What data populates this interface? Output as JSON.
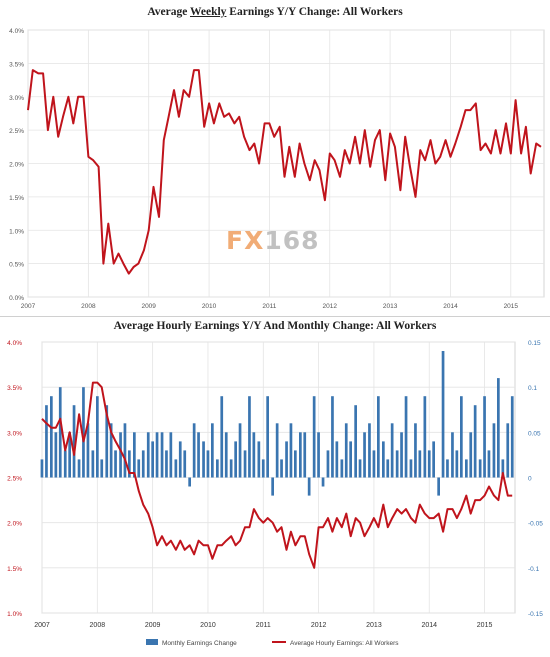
{
  "chart_data": [
    {
      "type": "line",
      "title_prefix": "Average ",
      "title_underlined": "Weekly",
      "title_suffix": " Earnings Y/Y Change: All Workers",
      "x_tick_labels": [
        "2007",
        "2008",
        "2009",
        "2010",
        "2011",
        "2012",
        "2013",
        "2014",
        "2015"
      ],
      "y_tick_labels": [
        "0.0%",
        "0.5%",
        "1.0%",
        "1.5%",
        "2.0%",
        "2.5%",
        "3.0%",
        "3.5%",
        "4.0%"
      ],
      "ylim": [
        0.0,
        4.0
      ],
      "xlim": [
        2007.0,
        2015.55
      ],
      "grid": true,
      "series": [
        {
          "color": "#c0141c",
          "x": [
            2007.0,
            2007.08,
            2007.17,
            2007.25,
            2007.33,
            2007.42,
            2007.5,
            2007.58,
            2007.67,
            2007.75,
            2007.83,
            2007.92,
            2008.0,
            2008.08,
            2008.17,
            2008.25,
            2008.33,
            2008.42,
            2008.5,
            2008.58,
            2008.67,
            2008.75,
            2008.83,
            2008.92,
            2009.0,
            2009.08,
            2009.17,
            2009.25,
            2009.33,
            2009.42,
            2009.5,
            2009.58,
            2009.67,
            2009.75,
            2009.83,
            2009.92,
            2010.0,
            2010.08,
            2010.17,
            2010.25,
            2010.33,
            2010.42,
            2010.5,
            2010.58,
            2010.67,
            2010.75,
            2010.83,
            2010.92,
            2011.0,
            2011.08,
            2011.17,
            2011.25,
            2011.33,
            2011.42,
            2011.5,
            2011.58,
            2011.67,
            2011.75,
            2011.83,
            2011.92,
            2012.0,
            2012.08,
            2012.17,
            2012.25,
            2012.33,
            2012.42,
            2012.5,
            2012.58,
            2012.67,
            2012.75,
            2012.83,
            2012.92,
            2013.0,
            2013.08,
            2013.17,
            2013.25,
            2013.33,
            2013.42,
            2013.5,
            2013.58,
            2013.67,
            2013.75,
            2013.83,
            2013.92,
            2014.0,
            2014.08,
            2014.17,
            2014.25,
            2014.33,
            2014.42,
            2014.5,
            2014.58,
            2014.67,
            2014.75,
            2014.83,
            2014.92,
            2015.0,
            2015.08,
            2015.17,
            2015.25,
            2015.33,
            2015.42,
            2015.5
          ],
          "y": [
            2.8,
            3.4,
            3.35,
            3.35,
            2.5,
            3.0,
            2.4,
            2.7,
            3.0,
            2.6,
            3.0,
            3.0,
            2.1,
            2.05,
            1.95,
            0.5,
            1.1,
            0.5,
            0.65,
            0.5,
            0.35,
            0.45,
            0.5,
            0.7,
            1.0,
            1.65,
            1.2,
            2.35,
            2.7,
            3.1,
            2.7,
            3.1,
            3.0,
            3.4,
            3.4,
            2.55,
            2.9,
            2.6,
            2.9,
            2.7,
            2.75,
            2.6,
            2.7,
            2.4,
            2.2,
            2.3,
            2.0,
            2.6,
            2.6,
            2.4,
            2.55,
            1.8,
            2.25,
            1.8,
            2.3,
            2.0,
            1.75,
            2.05,
            1.9,
            1.45,
            2.15,
            2.05,
            1.8,
            2.2,
            2.0,
            2.4,
            2.0,
            2.5,
            1.95,
            2.35,
            2.5,
            1.75,
            2.45,
            2.25,
            1.6,
            2.4,
            1.95,
            1.5,
            2.2,
            2.05,
            2.35,
            2.0,
            2.1,
            2.35,
            2.1,
            2.3,
            2.55,
            2.8,
            2.8,
            2.9,
            2.2,
            2.3,
            2.15,
            2.5,
            2.15,
            2.6,
            2.15,
            2.95,
            2.15,
            2.55,
            1.85,
            2.3,
            2.25
          ]
        }
      ]
    },
    {
      "type": "line+bar",
      "title": "Average Hourly Earnings Y/Y And Monthly Change: All Workers",
      "x_tick_labels": [
        "2007",
        "2008",
        "2009",
        "2010",
        "2011",
        "2012",
        "2013",
        "2014",
        "2015"
      ],
      "y_left_tick_labels": [
        "1.0%",
        "1.5%",
        "2.0%",
        "2.5%",
        "3.0%",
        "3.5%",
        "4.0%"
      ],
      "y_right_tick_labels": [
        "-0.15",
        "-0.1",
        "-0.05",
        "0",
        "0.05",
        "0.1",
        "0.15"
      ],
      "ylim_left": [
        1.0,
        4.0
      ],
      "ylim_right": [
        -0.15,
        0.15
      ],
      "xlim": [
        2007.0,
        2015.55
      ],
      "grid": true,
      "legend": "bottom",
      "series": [
        {
          "name": "Monthly Earnings Change",
          "type": "bar",
          "axis": "right",
          "color": "#3a75b0",
          "x": [
            2007.0,
            2007.08,
            2007.17,
            2007.25,
            2007.33,
            2007.42,
            2007.5,
            2007.58,
            2007.67,
            2007.75,
            2007.83,
            2007.92,
            2008.0,
            2008.08,
            2008.17,
            2008.25,
            2008.33,
            2008.42,
            2008.5,
            2008.58,
            2008.67,
            2008.75,
            2008.83,
            2008.92,
            2009.0,
            2009.08,
            2009.17,
            2009.25,
            2009.33,
            2009.42,
            2009.5,
            2009.58,
            2009.67,
            2009.75,
            2009.83,
            2009.92,
            2010.0,
            2010.08,
            2010.17,
            2010.25,
            2010.33,
            2010.42,
            2010.5,
            2010.58,
            2010.67,
            2010.75,
            2010.83,
            2010.92,
            2011.0,
            2011.08,
            2011.17,
            2011.25,
            2011.33,
            2011.42,
            2011.5,
            2011.58,
            2011.67,
            2011.75,
            2011.83,
            2011.92,
            2012.0,
            2012.08,
            2012.17,
            2012.25,
            2012.33,
            2012.42,
            2012.5,
            2012.58,
            2012.67,
            2012.75,
            2012.83,
            2012.92,
            2013.0,
            2013.08,
            2013.17,
            2013.25,
            2013.33,
            2013.42,
            2013.5,
            2013.58,
            2013.67,
            2013.75,
            2013.83,
            2013.92,
            2014.0,
            2014.08,
            2014.17,
            2014.25,
            2014.33,
            2014.42,
            2014.5,
            2014.58,
            2014.67,
            2014.75,
            2014.83,
            2014.92,
            2015.0,
            2015.08,
            2015.17,
            2015.25,
            2015.33,
            2015.42,
            2015.5
          ],
          "values": [
            0.02,
            0.08,
            0.09,
            0.05,
            0.1,
            0.03,
            0.05,
            0.08,
            0.02,
            0.1,
            0.06,
            0.03,
            0.09,
            0.02,
            0.08,
            0.06,
            0.03,
            0.05,
            0.06,
            0.03,
            0.05,
            0.02,
            0.03,
            0.05,
            0.04,
            0.05,
            0.05,
            0.03,
            0.05,
            0.02,
            0.04,
            0.03,
            -0.01,
            0.06,
            0.05,
            0.04,
            0.03,
            0.06,
            0.02,
            0.09,
            0.05,
            0.02,
            0.04,
            0.06,
            0.03,
            0.09,
            0.05,
            0.04,
            0.02,
            0.09,
            -0.02,
            0.06,
            0.02,
            0.04,
            0.06,
            0.03,
            0.05,
            0.05,
            -0.02,
            0.09,
            0.05,
            -0.01,
            0.03,
            0.09,
            0.04,
            0.02,
            0.06,
            0.04,
            0.08,
            0.02,
            0.05,
            0.06,
            0.03,
            0.09,
            0.04,
            0.02,
            0.06,
            0.03,
            0.05,
            0.09,
            0.02,
            0.06,
            0.03,
            0.09,
            0.03,
            0.04,
            -0.02,
            0.14,
            0.02,
            0.05,
            0.03,
            0.09,
            0.02,
            0.05,
            0.08,
            0.02,
            0.09,
            0.03,
            0.06,
            0.11,
            0.02,
            0.06,
            0.09
          ]
        },
        {
          "name": "Average Hourly Earnings: All Workers",
          "type": "line",
          "axis": "left",
          "color": "#c0141c",
          "x": [
            2007.0,
            2007.08,
            2007.17,
            2007.25,
            2007.33,
            2007.42,
            2007.5,
            2007.58,
            2007.67,
            2007.75,
            2007.83,
            2007.92,
            2008.0,
            2008.08,
            2008.17,
            2008.25,
            2008.33,
            2008.42,
            2008.5,
            2008.58,
            2008.67,
            2008.75,
            2008.83,
            2008.92,
            2009.0,
            2009.08,
            2009.17,
            2009.25,
            2009.33,
            2009.42,
            2009.5,
            2009.58,
            2009.67,
            2009.75,
            2009.83,
            2009.92,
            2010.0,
            2010.08,
            2010.17,
            2010.25,
            2010.33,
            2010.42,
            2010.5,
            2010.58,
            2010.67,
            2010.75,
            2010.83,
            2010.92,
            2011.0,
            2011.08,
            2011.17,
            2011.25,
            2011.33,
            2011.42,
            2011.5,
            2011.58,
            2011.67,
            2011.75,
            2011.83,
            2011.92,
            2012.0,
            2012.08,
            2012.17,
            2012.25,
            2012.33,
            2012.42,
            2012.5,
            2012.58,
            2012.67,
            2012.75,
            2012.83,
            2012.92,
            2013.0,
            2013.08,
            2013.17,
            2013.25,
            2013.33,
            2013.42,
            2013.5,
            2013.58,
            2013.67,
            2013.75,
            2013.83,
            2013.92,
            2014.0,
            2014.08,
            2014.17,
            2014.25,
            2014.33,
            2014.42,
            2014.5,
            2014.58,
            2014.67,
            2014.75,
            2014.83,
            2014.92,
            2015.0,
            2015.08,
            2015.17,
            2015.25,
            2015.33,
            2015.42,
            2015.5
          ],
          "y": [
            3.15,
            3.1,
            3.05,
            3.05,
            3.15,
            2.8,
            3.0,
            2.75,
            3.2,
            2.9,
            3.1,
            3.55,
            3.55,
            3.5,
            3.2,
            3.0,
            2.9,
            2.8,
            2.7,
            2.55,
            2.55,
            2.35,
            2.2,
            2.1,
            1.95,
            1.75,
            1.85,
            1.75,
            1.8,
            1.7,
            1.8,
            1.7,
            1.75,
            1.65,
            1.8,
            1.75,
            1.75,
            1.6,
            1.75,
            1.75,
            1.8,
            1.85,
            1.75,
            1.8,
            1.95,
            1.95,
            2.15,
            2.05,
            2.0,
            2.05,
            2.0,
            1.9,
            1.95,
            1.7,
            1.9,
            1.75,
            1.85,
            1.85,
            1.65,
            1.5,
            1.95,
            1.95,
            2.05,
            1.9,
            2.05,
            1.95,
            2.1,
            1.85,
            2.05,
            2.0,
            1.85,
            1.95,
            2.05,
            1.95,
            2.2,
            1.95,
            2.05,
            2.15,
            2.1,
            2.15,
            2.05,
            2.0,
            2.2,
            2.1,
            2.05,
            2.05,
            2.1,
            1.9,
            2.15,
            2.15,
            2.05,
            2.15,
            2.3,
            2.1,
            2.25,
            2.25,
            2.3,
            2.4,
            2.3,
            2.25,
            2.55,
            2.3,
            2.3
          ]
        }
      ]
    }
  ],
  "watermark": {
    "fx": "FX",
    "num": "168"
  }
}
